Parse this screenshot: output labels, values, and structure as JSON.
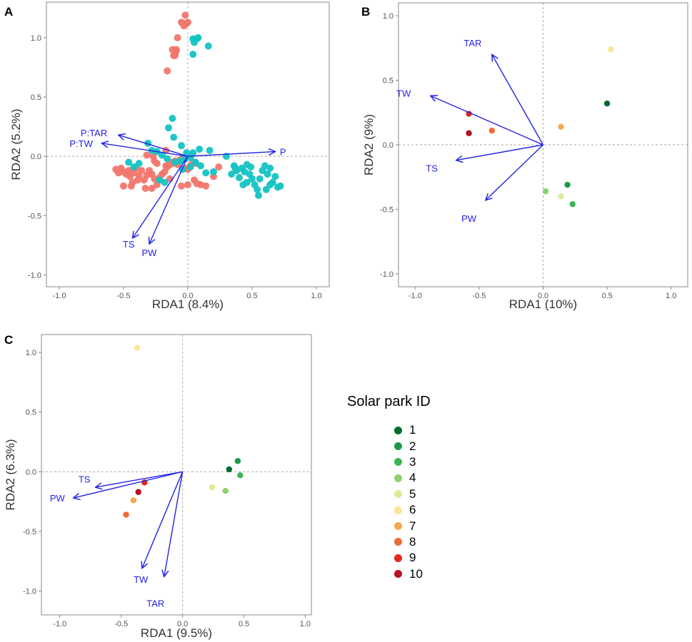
{
  "colors": {
    "treatment_salmon": "#F2766D",
    "treatment_teal": "#14C3C3",
    "arrow": "#2323E6",
    "axis_text": "#555555",
    "grid": "#AAAAAA",
    "frame": "#888888"
  },
  "legend": {
    "title": "Solar park ID",
    "items": [
      {
        "label": "1",
        "color": "#006D2C"
      },
      {
        "label": "2",
        "color": "#1B9A4A"
      },
      {
        "label": "3",
        "color": "#3CB553"
      },
      {
        "label": "4",
        "color": "#8FD16B"
      },
      {
        "label": "5",
        "color": "#D7EE96"
      },
      {
        "label": "6",
        "color": "#FBE596"
      },
      {
        "label": "7",
        "color": "#F5A84C"
      },
      {
        "label": "8",
        "color": "#EE6A34"
      },
      {
        "label": "9",
        "color": "#E4281E"
      },
      {
        "label": "10",
        "color": "#B70F25"
      }
    ]
  },
  "chart_data": [
    {
      "id": "A",
      "panel_label": "A",
      "type": "scatter",
      "xlabel": "RDA1 (8.4%)",
      "ylabel": "RDA2 (5.2%)",
      "xlim": [
        -1.1,
        1.1
      ],
      "ylim": [
        -1.1,
        1.3
      ],
      "xticks": [
        -1.0,
        -0.5,
        0.0,
        0.5,
        1.0
      ],
      "yticks": [
        -1.0,
        -0.5,
        0.0,
        0.5,
        1.0
      ],
      "xtick_labels": [
        "-1.0",
        "-0.5",
        "0.0",
        "0.5",
        "1.0"
      ],
      "ytick_labels": [
        "-1.0",
        "-0.5",
        "0.0",
        "0.5",
        "1.0"
      ],
      "series": [
        {
          "name": "group-salmon",
          "color": "#F2766D",
          "points": [
            [
              -0.02,
              1.19
            ],
            [
              -0.04,
              1.12
            ],
            [
              -0.01,
              1.12
            ],
            [
              -0.09,
              0.9
            ],
            [
              -0.12,
              0.9
            ],
            [
              -0.1,
              0.86
            ],
            [
              -0.1,
              0.85
            ],
            [
              -0.11,
              0.85
            ],
            [
              -0.09,
              0.89
            ],
            [
              -0.08,
              1.0
            ],
            [
              -0.03,
              1.1
            ],
            [
              0.0,
              1.13
            ],
            [
              -0.05,
              1.13
            ],
            [
              -0.16,
              0.72
            ],
            [
              -0.17,
              0.05
            ],
            [
              -0.32,
              0.01
            ],
            [
              -0.27,
              0.0
            ],
            [
              -0.26,
              -0.04
            ],
            [
              -0.24,
              -0.06
            ],
            [
              -0.12,
              -0.05
            ],
            [
              -0.14,
              -0.07
            ],
            [
              -0.17,
              -0.08
            ],
            [
              -0.56,
              -0.11
            ],
            [
              -0.54,
              -0.14
            ],
            [
              -0.52,
              -0.1
            ],
            [
              -0.5,
              -0.13
            ],
            [
              -0.48,
              -0.15
            ],
            [
              -0.46,
              -0.12
            ],
            [
              -0.45,
              -0.17
            ],
            [
              -0.43,
              -0.22
            ],
            [
              -0.42,
              -0.14
            ],
            [
              -0.4,
              -0.1
            ],
            [
              -0.38,
              -0.16
            ],
            [
              -0.36,
              -0.12
            ],
            [
              -0.34,
              -0.2
            ],
            [
              -0.32,
              -0.16
            ],
            [
              -0.3,
              -0.12
            ],
            [
              -0.28,
              -0.15
            ],
            [
              -0.26,
              -0.19
            ],
            [
              -0.24,
              -0.24
            ],
            [
              -0.22,
              -0.18
            ],
            [
              -0.2,
              -0.15
            ],
            [
              -0.18,
              -0.13
            ],
            [
              -0.16,
              -0.09
            ],
            [
              -0.14,
              -0.19
            ],
            [
              -0.12,
              -0.06
            ],
            [
              -0.1,
              -0.04
            ],
            [
              -0.08,
              -0.07
            ],
            [
              -0.06,
              -0.03
            ],
            [
              -0.04,
              -0.02
            ],
            [
              -0.02,
              -0.1
            ],
            [
              0.0,
              -0.11
            ],
            [
              0.02,
              -0.08
            ],
            [
              0.04,
              -0.05
            ],
            [
              0.06,
              -0.06
            ],
            [
              0.1,
              -0.24
            ],
            [
              0.14,
              -0.25
            ],
            [
              0.2,
              -0.17
            ],
            [
              0.24,
              -0.09
            ],
            [
              -0.5,
              -0.25
            ],
            [
              -0.44,
              -0.25
            ],
            [
              -0.39,
              -0.2
            ],
            [
              -0.33,
              -0.27
            ],
            [
              -0.28,
              -0.27
            ],
            [
              -0.05,
              -0.25
            ],
            [
              0.0,
              -0.24
            ],
            [
              0.05,
              -0.2
            ],
            [
              0.07,
              -0.23
            ]
          ]
        },
        {
          "name": "group-teal",
          "color": "#14C3C3",
          "points": [
            [
              0.05,
              0.96
            ],
            [
              0.07,
              0.99
            ],
            [
              0.08,
              1.0
            ],
            [
              0.04,
              0.99
            ],
            [
              0.04,
              0.86
            ],
            [
              0.16,
              0.93
            ],
            [
              -0.12,
              0.32
            ],
            [
              -0.15,
              0.24
            ],
            [
              -0.11,
              0.16
            ],
            [
              -0.05,
              0.09
            ],
            [
              -0.01,
              0.03
            ],
            [
              0.04,
              0.03
            ],
            [
              0.09,
              0.06
            ],
            [
              0.17,
              0.05
            ],
            [
              -0.31,
              0.11
            ],
            [
              -0.28,
              0.05
            ],
            [
              -0.24,
              0.04
            ],
            [
              -0.2,
              0.01
            ],
            [
              -0.16,
              -0.02
            ],
            [
              -0.1,
              -0.05
            ],
            [
              -0.06,
              -0.04
            ],
            [
              -0.02,
              -0.02
            ],
            [
              0.02,
              -0.01
            ],
            [
              0.06,
              -0.05
            ],
            [
              0.1,
              -0.08
            ],
            [
              -0.46,
              -0.05
            ],
            [
              -0.42,
              -0.09
            ],
            [
              -0.38,
              -0.06
            ],
            [
              -0.22,
              -0.2
            ],
            [
              -0.18,
              -0.22
            ],
            [
              -0.04,
              -0.11
            ],
            [
              0.02,
              -0.09
            ],
            [
              0.14,
              -0.14
            ],
            [
              0.2,
              -0.13
            ],
            [
              0.3,
              0.0
            ],
            [
              0.37,
              -0.1
            ],
            [
              0.34,
              -0.15
            ],
            [
              0.36,
              -0.08
            ],
            [
              0.38,
              -0.12
            ],
            [
              0.4,
              -0.18
            ],
            [
              0.42,
              -0.1
            ],
            [
              0.44,
              -0.13
            ],
            [
              0.46,
              -0.07
            ],
            [
              0.48,
              -0.15
            ],
            [
              0.5,
              -0.19
            ],
            [
              0.52,
              -0.24
            ],
            [
              0.54,
              -0.28
            ],
            [
              0.55,
              -0.33
            ],
            [
              0.56,
              -0.19
            ],
            [
              0.58,
              -0.12
            ],
            [
              0.6,
              -0.08
            ],
            [
              0.62,
              -0.15
            ],
            [
              0.64,
              -0.1
            ],
            [
              0.66,
              -0.22
            ],
            [
              0.68,
              -0.17
            ],
            [
              0.7,
              -0.26
            ],
            [
              0.72,
              -0.25
            ],
            [
              0.61,
              -0.28
            ],
            [
              0.64,
              -0.24
            ],
            [
              0.46,
              -0.22
            ],
            [
              0.43,
              -0.24
            ],
            [
              0.49,
              -0.09
            ]
          ]
        }
      ],
      "arrows": [
        {
          "label": "P",
          "x": 0.68,
          "y": 0.04,
          "lx": 0.74,
          "ly": 0.04
        },
        {
          "label": "P:TAR",
          "x": -0.54,
          "y": 0.18,
          "lx": -0.73,
          "ly": 0.2
        },
        {
          "label": "P:TW",
          "x": -0.67,
          "y": 0.11,
          "lx": -0.83,
          "ly": 0.11
        },
        {
          "label": "TS",
          "x": -0.43,
          "y": -0.69,
          "lx": -0.46,
          "ly": -0.74
        },
        {
          "label": "PW",
          "x": -0.3,
          "y": -0.74,
          "lx": -0.3,
          "ly": -0.81
        }
      ]
    },
    {
      "id": "B",
      "panel_label": "B",
      "type": "scatter",
      "xlabel": "RDA1 (10%)",
      "ylabel": "RDA2 (9%)",
      "xlim": [
        -1.13,
        1.13
      ],
      "ylim": [
        -1.1,
        1.1
      ],
      "xticks": [
        -1.0,
        -0.5,
        0.0,
        0.5,
        1.0
      ],
      "yticks": [
        -1.0,
        -0.5,
        0.0,
        0.5,
        1.0
      ],
      "xtick_labels": [
        "-1.0",
        "-0.5",
        "0.0",
        "0.5",
        "1.0"
      ],
      "ytick_labels": [
        "-1.0",
        "-0.5",
        "0.0",
        "0.5",
        "1.0"
      ],
      "series": [
        {
          "name": "1",
          "color": "#006D2C",
          "points": [
            [
              0.5,
              0.32
            ]
          ]
        },
        {
          "name": "2",
          "color": "#1B9A4A",
          "points": [
            [
              0.19,
              -0.31
            ]
          ]
        },
        {
          "name": "3",
          "color": "#3CB553",
          "points": [
            [
              0.23,
              -0.46
            ]
          ]
        },
        {
          "name": "4",
          "color": "#8FD16B",
          "points": [
            [
              0.02,
              -0.36
            ]
          ]
        },
        {
          "name": "5",
          "color": "#D7EE96",
          "points": [
            [
              0.14,
              -0.4
            ]
          ]
        },
        {
          "name": "6",
          "color": "#FBE596",
          "points": [
            [
              0.53,
              0.74
            ]
          ]
        },
        {
          "name": "7",
          "color": "#F5A84C",
          "points": [
            [
              0.14,
              0.14
            ]
          ]
        },
        {
          "name": "8",
          "color": "#EE6A34",
          "points": [
            [
              -0.4,
              0.11
            ]
          ]
        },
        {
          "name": "9",
          "color": "#E4281E",
          "points": [
            [
              -0.58,
              0.24
            ]
          ]
        },
        {
          "name": "10",
          "color": "#B70F25",
          "points": [
            [
              -0.58,
              0.09
            ]
          ]
        }
      ],
      "arrows": [
        {
          "label": "TAR",
          "x": -0.4,
          "y": 0.7,
          "lx": -0.55,
          "ly": 0.79
        },
        {
          "label": "TW",
          "x": -0.88,
          "y": 0.38,
          "lx": -1.09,
          "ly": 0.4
        },
        {
          "label": "TS",
          "x": -0.68,
          "y": -0.12,
          "lx": -0.87,
          "ly": -0.18
        },
        {
          "label": "PW",
          "x": -0.45,
          "y": -0.43,
          "lx": -0.58,
          "ly": -0.57
        }
      ]
    },
    {
      "id": "C",
      "panel_label": "C",
      "type": "scatter",
      "xlabel": "RDA1 (9.5%)",
      "ylabel": "RDA2 (6.3%)",
      "xlim": [
        -1.15,
        1.05
      ],
      "ylim": [
        -1.2,
        1.15
      ],
      "xticks": [
        -1.0,
        -0.5,
        0.0,
        0.5,
        1.0
      ],
      "yticks": [
        -1.0,
        -0.5,
        0.0,
        0.5,
        1.0
      ],
      "xtick_labels": [
        "-1.0",
        "-0.5",
        "0.0",
        "0.5",
        "1.0"
      ],
      "ytick_labels": [
        "-1.0",
        "-0.5",
        "0.0",
        "0.5",
        "1.0"
      ],
      "series": [
        {
          "name": "1",
          "color": "#006D2C",
          "points": [
            [
              0.38,
              0.02
            ]
          ]
        },
        {
          "name": "2",
          "color": "#1B9A4A",
          "points": [
            [
              0.45,
              0.09
            ]
          ]
        },
        {
          "name": "3",
          "color": "#3CB553",
          "points": [
            [
              0.47,
              -0.03
            ]
          ]
        },
        {
          "name": "4",
          "color": "#8FD16B",
          "points": [
            [
              0.35,
              -0.16
            ]
          ]
        },
        {
          "name": "5",
          "color": "#D7EE96",
          "points": [
            [
              0.24,
              -0.13
            ]
          ]
        },
        {
          "name": "6",
          "color": "#FBE596",
          "points": [
            [
              -0.37,
              1.04
            ]
          ]
        },
        {
          "name": "7",
          "color": "#F5A84C",
          "points": [
            [
              -0.4,
              -0.24
            ]
          ]
        },
        {
          "name": "8",
          "color": "#EE6A34",
          "points": [
            [
              -0.46,
              -0.36
            ]
          ]
        },
        {
          "name": "9",
          "color": "#E4281E",
          "points": [
            [
              -0.31,
              -0.09
            ]
          ]
        },
        {
          "name": "10",
          "color": "#B70F25",
          "points": [
            [
              -0.36,
              -0.17
            ]
          ]
        }
      ],
      "arrows": [
        {
          "label": "TS",
          "x": -0.71,
          "y": -0.13,
          "lx": -0.8,
          "ly": -0.06
        },
        {
          "label": "PW",
          "x": -0.89,
          "y": -0.22,
          "lx": -1.02,
          "ly": -0.22
        },
        {
          "label": "TW",
          "x": -0.33,
          "y": -0.81,
          "lx": -0.34,
          "ly": -0.9
        },
        {
          "label": "TAR",
          "x": -0.15,
          "y": -0.88,
          "lx": -0.22,
          "ly": -1.1
        }
      ]
    }
  ]
}
